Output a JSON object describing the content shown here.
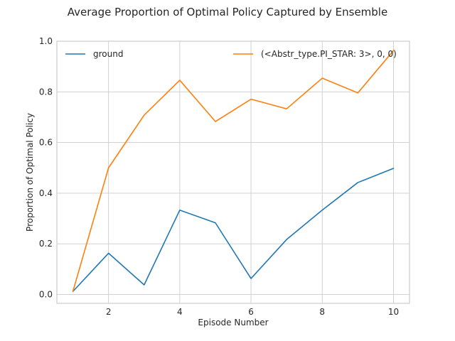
{
  "chart_data": {
    "type": "line",
    "title": "Average Proportion of Optimal Policy Captured by Ensemble",
    "xlabel": "Episode Number",
    "ylabel": "Proportion of Optimal Policy",
    "x": [
      1,
      2,
      3,
      4,
      5,
      6,
      7,
      8,
      9,
      10
    ],
    "xlim": [
      0.55,
      10.45
    ],
    "ylim": [
      -0.035,
      1.0
    ],
    "xticks": [
      2,
      4,
      6,
      8,
      10
    ],
    "yticks": [
      0.0,
      0.2,
      0.4,
      0.6,
      0.8,
      1.0
    ],
    "xtick_labels": [
      "2",
      "4",
      "6",
      "8",
      "10"
    ],
    "ytick_labels": [
      "0.0",
      "0.2",
      "0.4",
      "0.6",
      "0.8",
      "1.0"
    ],
    "grid": true,
    "legend": "top",
    "series": [
      {
        "name": "ground",
        "color": "#1f77b4",
        "values": [
          0.012,
          0.163,
          0.038,
          0.333,
          0.283,
          0.063,
          0.217,
          0.333,
          0.442,
          0.498
        ]
      },
      {
        "name": "(<Abstr_type.PI_STAR: 3>, 0, 0)",
        "color": "#ff7f0e",
        "values": [
          0.012,
          0.5,
          0.708,
          0.846,
          0.683,
          0.771,
          0.733,
          0.854,
          0.796,
          0.963
        ]
      }
    ]
  }
}
